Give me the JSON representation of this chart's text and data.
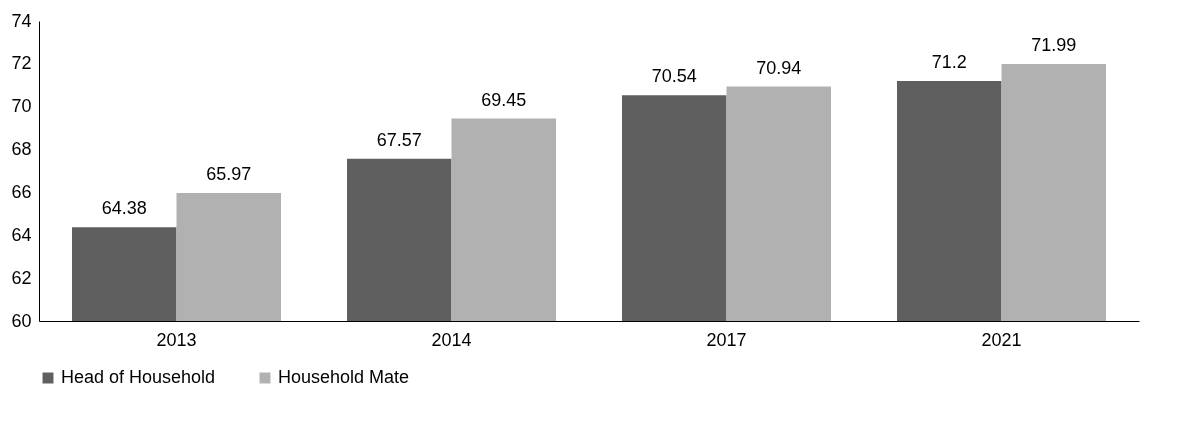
{
  "chart_data": {
    "type": "bar",
    "categories": [
      "2013",
      "2014",
      "2017",
      "2021"
    ],
    "series": [
      {
        "name": "Head of Household",
        "color": "#5f5f5f",
        "values": [
          64.38,
          67.57,
          70.54,
          71.2
        ]
      },
      {
        "name": "Household Mate",
        "color": "#b1b1b1",
        "values": [
          65.97,
          69.45,
          70.94,
          71.99
        ]
      }
    ],
    "ylim": [
      60,
      74
    ],
    "yticks": [
      60,
      62,
      64,
      66,
      68,
      70,
      72,
      74
    ],
    "grid": false,
    "legend": "bottom",
    "data_labels": true
  }
}
